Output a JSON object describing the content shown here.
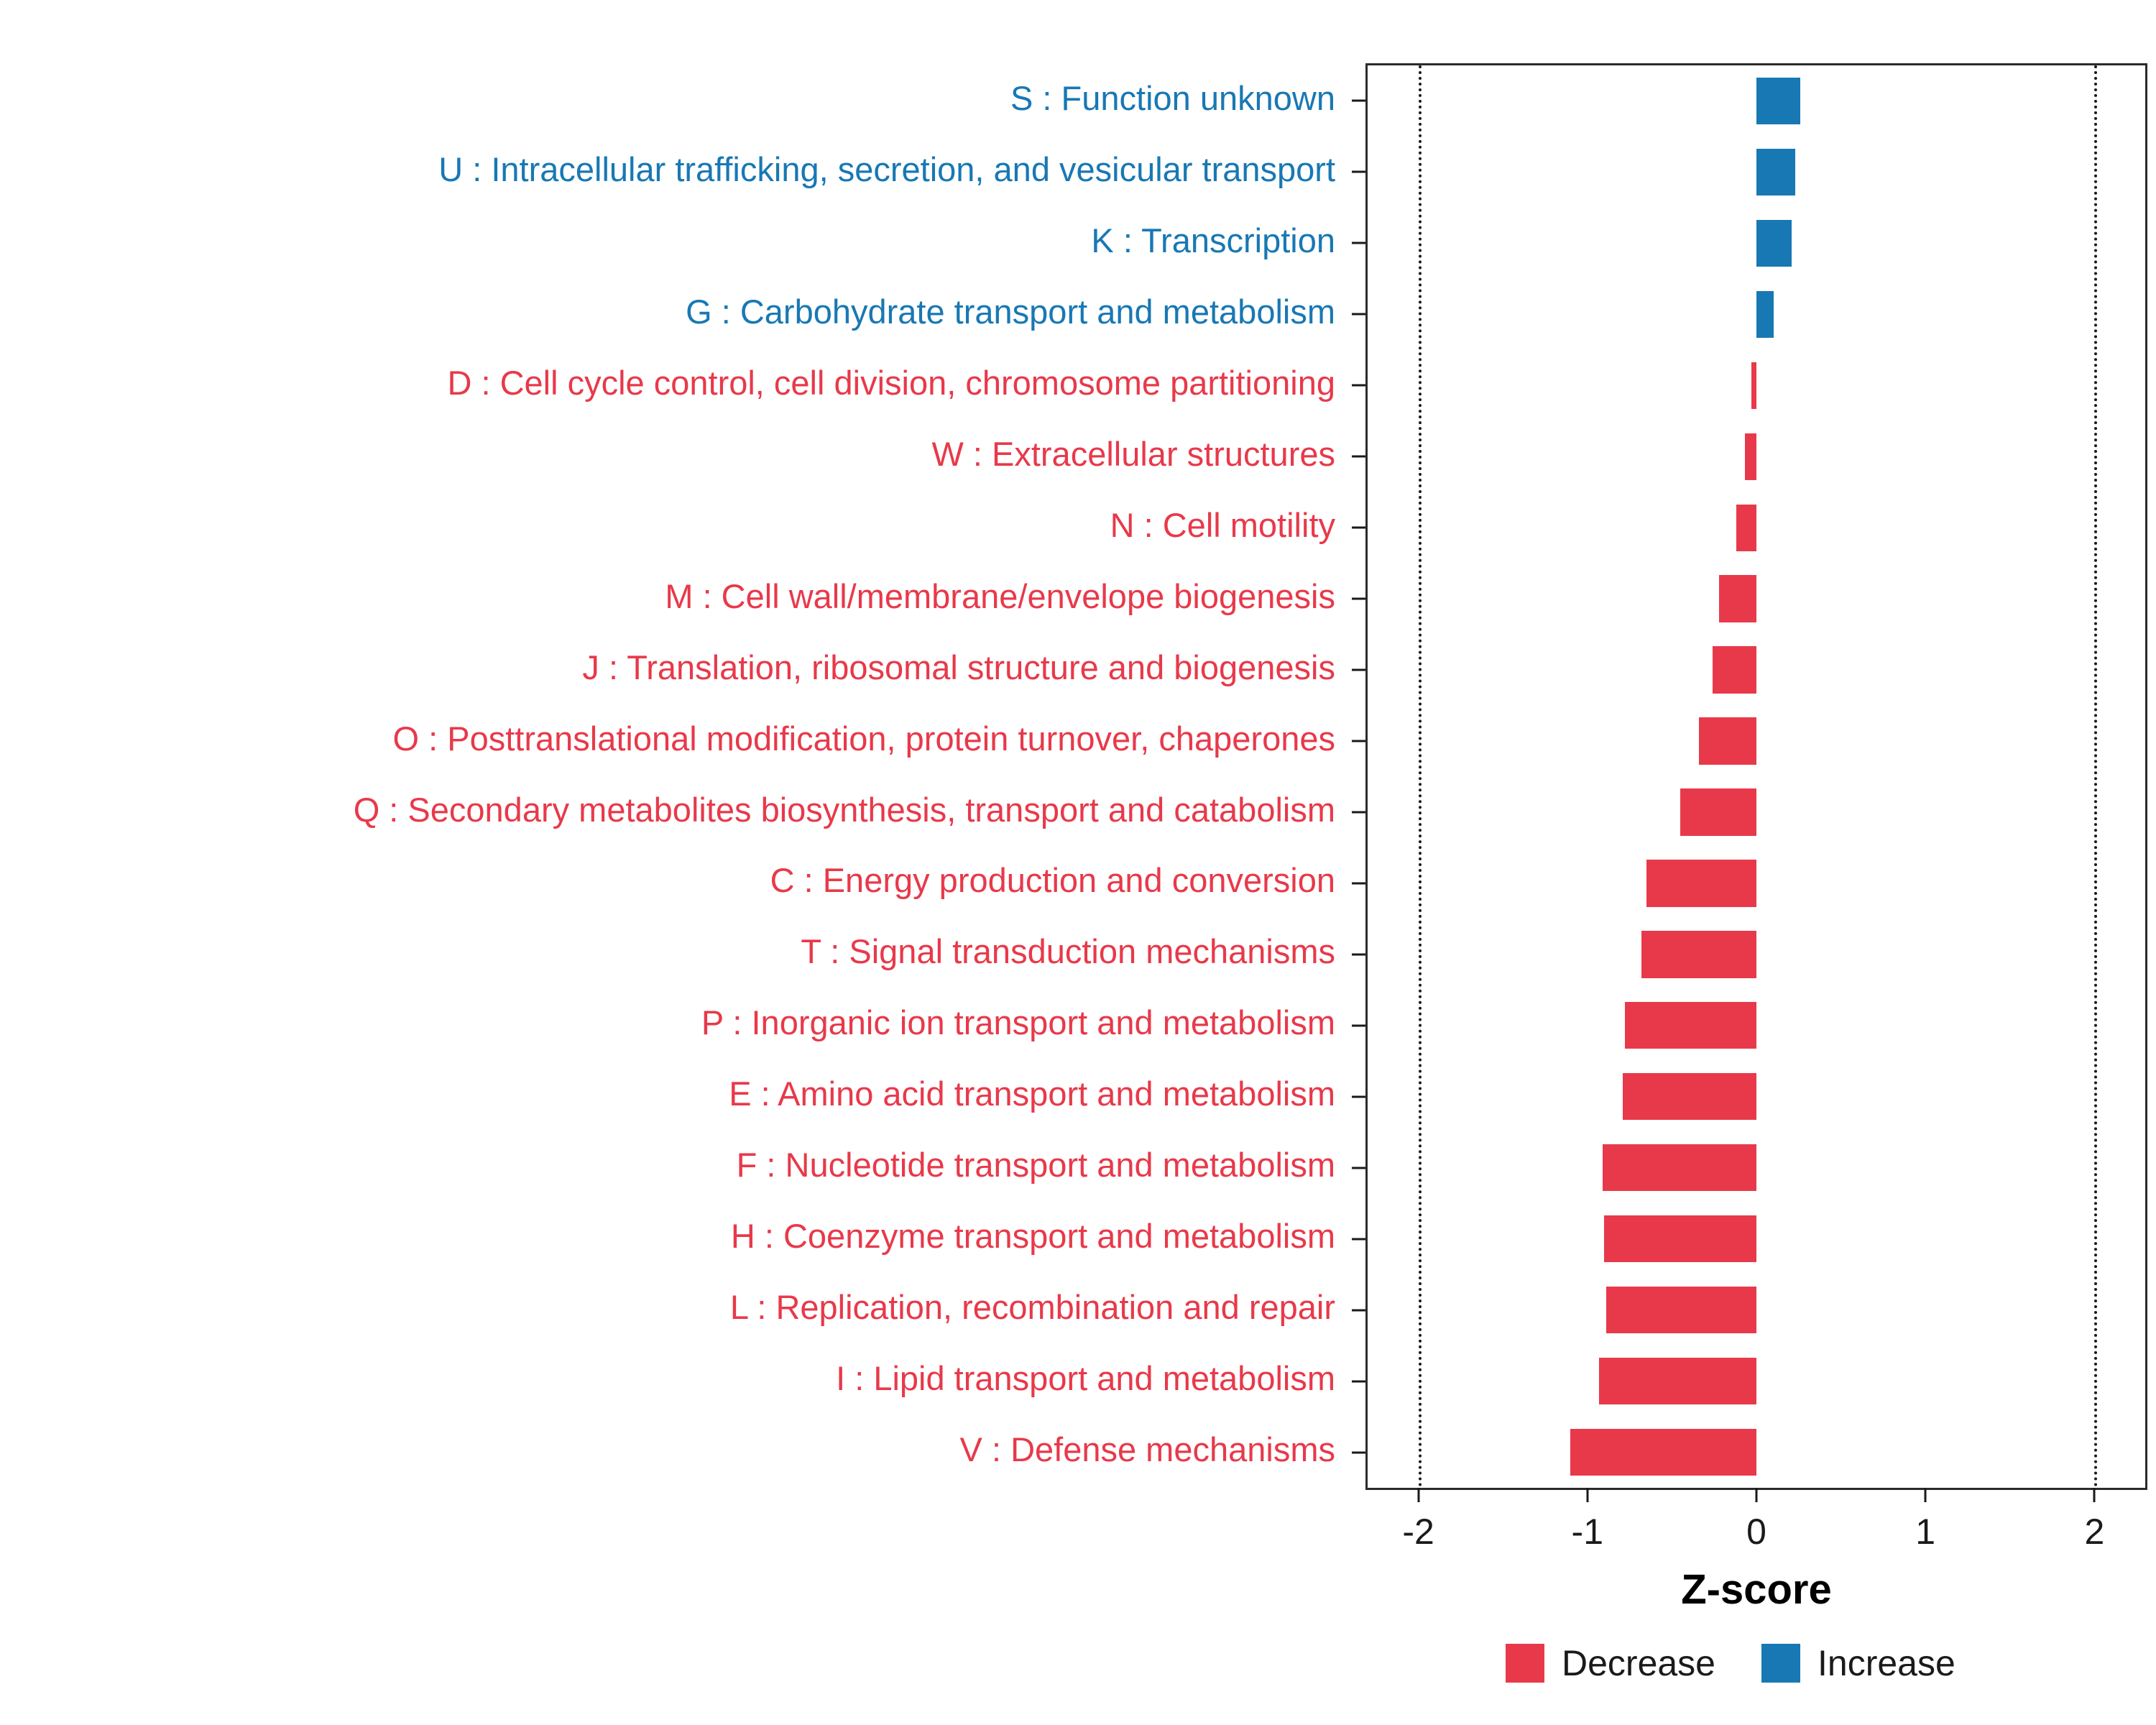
{
  "chart_data": {
    "type": "bar",
    "orientation": "horizontal",
    "title": "",
    "xlabel": "Z-score",
    "ylabel": "",
    "xlim": [
      -2.3,
      2.3
    ],
    "x_ticks": [
      -2,
      -1,
      0,
      1,
      2
    ],
    "reference_lines": [
      -2,
      2
    ],
    "grid": false,
    "legend_position": "bottom-right",
    "colors": {
      "Decrease": "#E8394A",
      "Increase": "#1878B4"
    },
    "legend": [
      {
        "label": "Decrease",
        "group": "Decrease"
      },
      {
        "label": "Increase",
        "group": "Increase"
      }
    ],
    "categories": [
      "S : Function unknown",
      "U : Intracellular trafficking, secretion, and vesicular transport",
      "K : Transcription",
      "G : Carbohydrate transport and metabolism",
      "D : Cell cycle control, cell division, chromosome partitioning",
      "W : Extracellular structures",
      "N : Cell motility",
      "M : Cell wall/membrane/envelope biogenesis",
      "J : Translation, ribosomal structure and biogenesis",
      "O : Posttranslational modification, protein turnover, chaperones",
      "Q : Secondary metabolites biosynthesis, transport and catabolism",
      "C : Energy production and conversion",
      "T : Signal transduction mechanisms",
      "P : Inorganic ion transport and metabolism",
      "E : Amino acid transport and metabolism",
      "F : Nucleotide transport and metabolism",
      "H : Coenzyme transport and metabolism",
      "L : Replication, recombination and repair",
      "I : Lipid transport and metabolism",
      "V : Defense mechanisms"
    ],
    "groups": [
      "Increase",
      "Increase",
      "Increase",
      "Increase",
      "Decrease",
      "Decrease",
      "Decrease",
      "Decrease",
      "Decrease",
      "Decrease",
      "Decrease",
      "Decrease",
      "Decrease",
      "Decrease",
      "Decrease",
      "Decrease",
      "Decrease",
      "Decrease",
      "Decrease",
      "Decrease"
    ],
    "values": [
      0.26,
      0.23,
      0.21,
      0.1,
      -0.03,
      -0.07,
      -0.12,
      -0.22,
      -0.26,
      -0.34,
      -0.45,
      -0.65,
      -0.68,
      -0.78,
      -0.79,
      -0.91,
      -0.9,
      -0.89,
      -0.93,
      -1.1
    ]
  }
}
